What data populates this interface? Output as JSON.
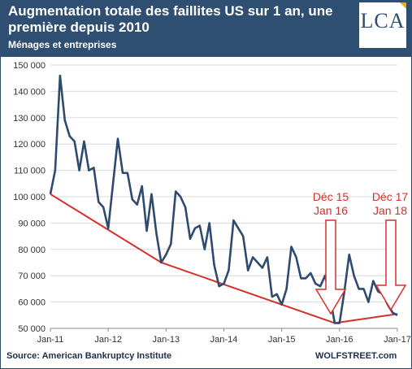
{
  "header": {
    "title": "Augmentation totale des faillites US sur 1 an, une première depuis 2010",
    "subtitle": "Ménages et entreprises",
    "logo_text": "LCA"
  },
  "footer": {
    "source": "Source: American Bankruptcy Institute",
    "credit": "WOLFSTREET.com"
  },
  "annotations": [
    {
      "line1": "Déc 15",
      "line2": "Jan 16"
    },
    {
      "line1": "Déc 17",
      "line2": "Jan 18"
    }
  ],
  "colors": {
    "header": "#2f4f72",
    "series": "#2e4a6e",
    "trend": "#d6302a",
    "grid": "#d9d9d9"
  },
  "chart_data": {
    "type": "line",
    "ylim": [
      50000,
      150000
    ],
    "yticks": [
      50000,
      60000,
      70000,
      80000,
      90000,
      100000,
      110000,
      120000,
      130000,
      140000,
      150000
    ],
    "ytick_labels": [
      "50 000",
      "60 000",
      "70 000",
      "80 000",
      "90 000",
      "100 000",
      "110 000",
      "120 000",
      "130 000",
      "140 000",
      "150 000"
    ],
    "xtick_labels": [
      "Jan-11",
      "Jan-12",
      "Jan-13",
      "Jan-14",
      "Jan-15",
      "Jan-16",
      "Jan-17"
    ],
    "grid": true,
    "series": [
      {
        "values": [
          101000,
          110000,
          146000,
          129000,
          123000,
          121000,
          110000,
          121000,
          110000,
          111000,
          98000,
          96000,
          88000,
          105000,
          122000,
          109000,
          109000,
          99000,
          97000,
          104000,
          87000,
          101000,
          86000,
          75000,
          78000,
          82000,
          102000,
          100000,
          96000,
          84000,
          88000,
          89000,
          80000,
          90000,
          74000,
          66000,
          67000,
          72000,
          91000,
          88000,
          85000,
          72000,
          77000,
          75000,
          73000,
          77000,
          62000,
          63000,
          59000,
          65000,
          81000,
          77000,
          69000,
          69000,
          71000,
          67000,
          66000,
          70000,
          62000,
          52000,
          52000,
          64000,
          78000,
          70000,
          65000,
          65000,
          60000,
          68000,
          64000,
          63000,
          59000,
          56000,
          55000
        ]
      }
    ],
    "trend_lines": [
      {
        "points": [
          [
            0,
            101000
          ],
          [
            23,
            75000
          ],
          [
            59,
            52000
          ],
          [
            72,
            55500
          ]
        ]
      }
    ]
  }
}
